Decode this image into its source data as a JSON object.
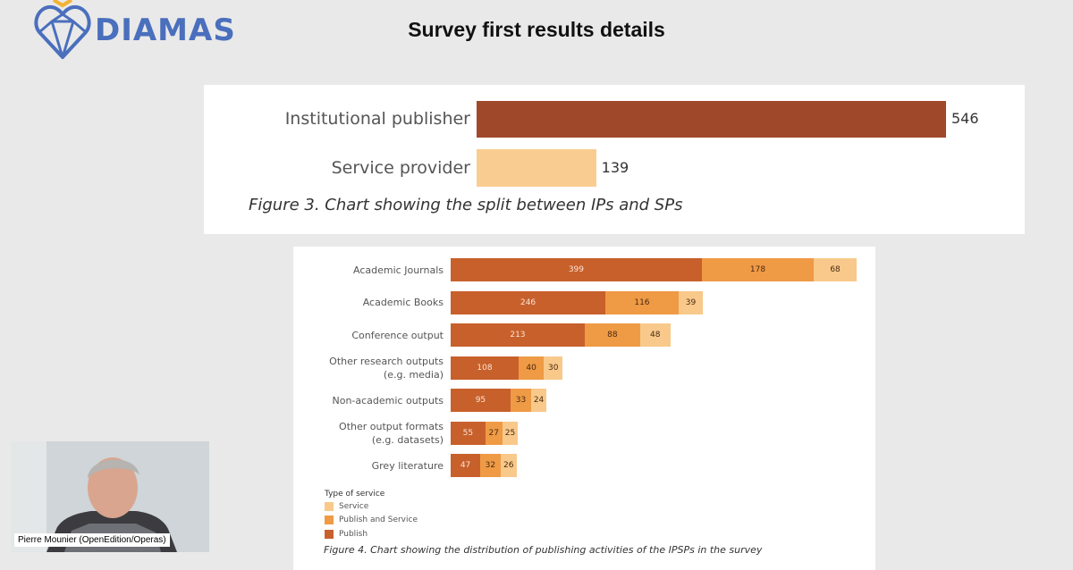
{
  "brand": {
    "name": "DIAMAS",
    "color": "#4a6fbd"
  },
  "slide": {
    "title": "Survey first results details"
  },
  "colors": {
    "publish": "#c8602c",
    "publish_and_service": "#ef9a45",
    "service": "#f8c98a",
    "ip_bar": "#a0492a",
    "sp_bar": "#f9cd91"
  },
  "chart_data": [
    {
      "type": "bar",
      "orientation": "horizontal",
      "categories": [
        "Institutional publisher",
        "Service provider"
      ],
      "values": [
        546,
        139
      ],
      "title": "",
      "caption": "Figure 3. Chart showing the split between IPs and SPs",
      "xlim": [
        0,
        546
      ]
    },
    {
      "type": "bar",
      "orientation": "horizontal",
      "stacked": true,
      "categories": [
        [
          "Academic Journals"
        ],
        [
          "Academic Books"
        ],
        [
          "Conference output"
        ],
        [
          "Other research outputs",
          "(e.g. media)"
        ],
        [
          "Non-academic outputs"
        ],
        [
          "Other output formats",
          "(e.g. datasets)"
        ],
        [
          "Grey literature"
        ]
      ],
      "series": [
        {
          "name": "Publish",
          "values": [
            399,
            246,
            213,
            108,
            95,
            55,
            47
          ]
        },
        {
          "name": "Publish and Service",
          "values": [
            178,
            116,
            88,
            40,
            33,
            27,
            32
          ]
        },
        {
          "name": "Service",
          "values": [
            68,
            39,
            48,
            30,
            24,
            25,
            26
          ]
        }
      ],
      "legend": {
        "title": "Type of service",
        "position": "bottom-left",
        "entries": [
          "Service",
          "Publish and Service",
          "Publish"
        ]
      },
      "caption": "Figure 4. Chart showing the distribution of publishing activities of the IPSPs in the survey",
      "xlim": [
        0,
        645
      ]
    }
  ],
  "video": {
    "participant_name": "Pierre Mounier (OpenEdition/Operas)"
  }
}
